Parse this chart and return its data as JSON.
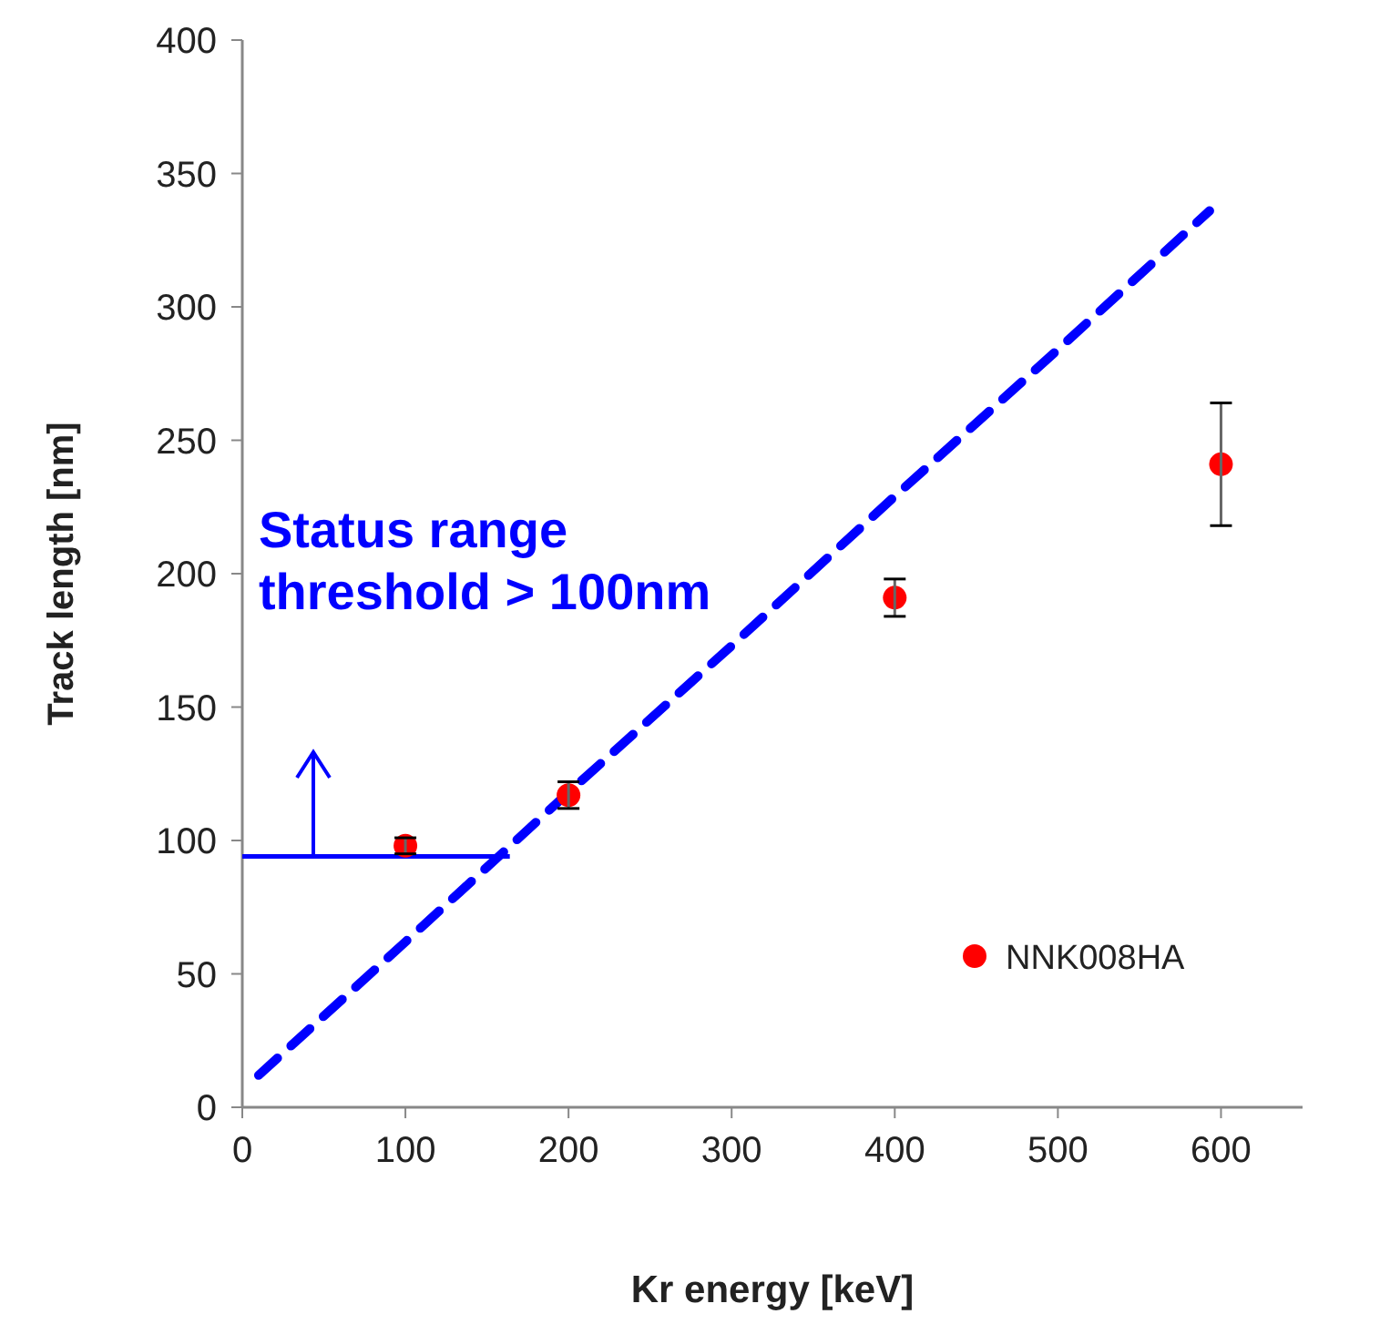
{
  "chart_data": {
    "type": "scatter",
    "xlabel": "Kr energy [keV]",
    "ylabel": "Track length [nm]",
    "xlim": [
      0,
      650
    ],
    "xticks": [
      0,
      100,
      200,
      300,
      400,
      500,
      600
    ],
    "ylim": [
      0,
      400
    ],
    "yticks": [
      0,
      50,
      100,
      150,
      200,
      250,
      300,
      350,
      400
    ],
    "series": [
      {
        "type": "line",
        "color": "#0000ff",
        "line_style": "dashed",
        "marker": "none",
        "x": [
          10,
          100,
          200,
          300,
          400,
          500,
          593
        ],
        "values": [
          12,
          62,
          118,
          173,
          229,
          284,
          336
        ]
      },
      {
        "type": "line",
        "color": "#0000ff",
        "line_style": "solid",
        "marker": "none",
        "x": [
          0,
          164
        ],
        "values": [
          94,
          94
        ]
      },
      {
        "name": "NNK008HA",
        "color": "#ff0000",
        "marker": "circle",
        "x": [
          100,
          200,
          400,
          600
        ],
        "values": [
          98,
          117,
          191,
          241
        ],
        "errors": [
          3,
          5,
          7,
          23
        ]
      }
    ],
    "annotations": [
      "Status range threshold > 100nm"
    ],
    "legend": "right",
    "grid": false
  }
}
